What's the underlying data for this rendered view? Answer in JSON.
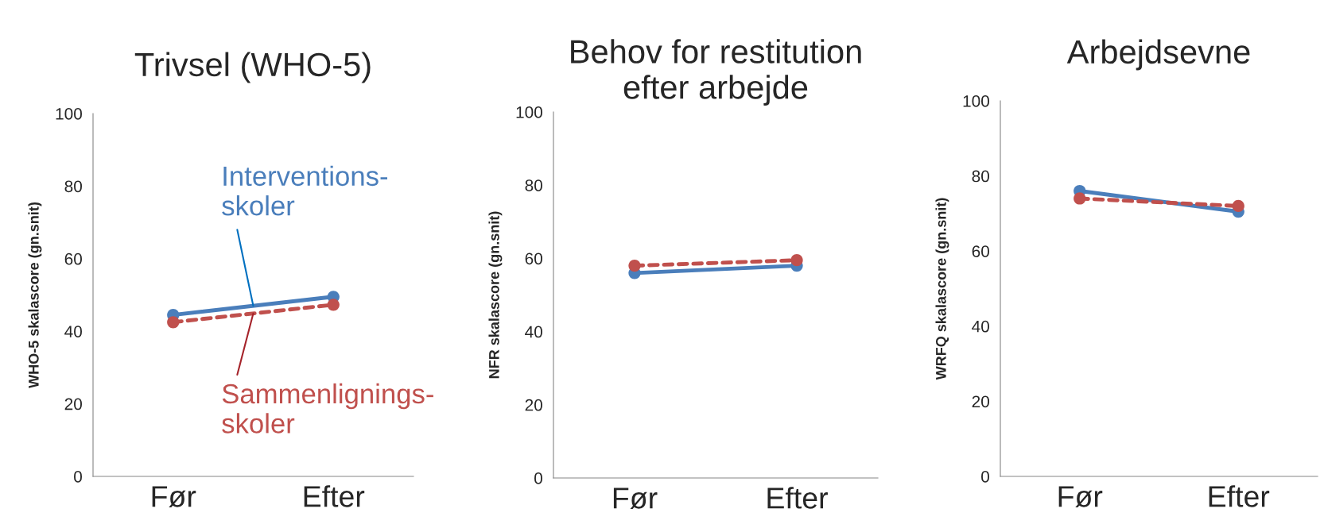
{
  "chart_data": [
    {
      "type": "line",
      "title": "Trivsel (WHO-5)",
      "ylabel": "WHO-5 skalascore (gn.snit)",
      "categories": [
        "Før",
        "Efter"
      ],
      "ylim": [
        0,
        100
      ],
      "yticks": [
        0,
        20,
        40,
        60,
        80,
        100
      ],
      "grid": false,
      "legend": "bottom right",
      "marker": "circle",
      "series": [
        {
          "name": "Interventions-\nskoler",
          "color": "#4a7ebb",
          "line_style": "solid",
          "values": [
            44.5,
            49.5
          ]
        },
        {
          "name": "Sammenlignings-\nskoler",
          "color": "#c0504d",
          "line_style": "dashed",
          "values": [
            42.5,
            47.3
          ]
        }
      ]
    },
    {
      "type": "line",
      "title": "Behov for restitution\nefter arbejde",
      "ylabel": "NFR skalascore (gn.snit)",
      "categories": [
        "Før",
        "Efter"
      ],
      "ylim": [
        0,
        100
      ],
      "yticks": [
        0,
        20,
        40,
        60,
        80,
        100
      ],
      "grid": false,
      "marker": "circle",
      "series": [
        {
          "color": "#4a7ebb",
          "line_style": "solid",
          "values": [
            56,
            58
          ]
        },
        {
          "color": "#c0504d",
          "line_style": "dashed",
          "values": [
            58,
            59.5
          ]
        }
      ]
    },
    {
      "type": "line",
      "title": "Arbejdsevne",
      "ylabel": "WRFQ skalascore (gn.snit)",
      "categories": [
        "Før",
        "Efter"
      ],
      "ylim": [
        0,
        100
      ],
      "yticks": [
        0,
        20,
        40,
        60,
        80,
        100
      ],
      "grid": false,
      "marker": "circle",
      "series": [
        {
          "color": "#4a7ebb",
          "line_style": "solid",
          "values": [
            76,
            70.5
          ]
        },
        {
          "color": "#c0504d",
          "line_style": "dashed",
          "values": [
            74,
            72
          ]
        }
      ]
    }
  ]
}
